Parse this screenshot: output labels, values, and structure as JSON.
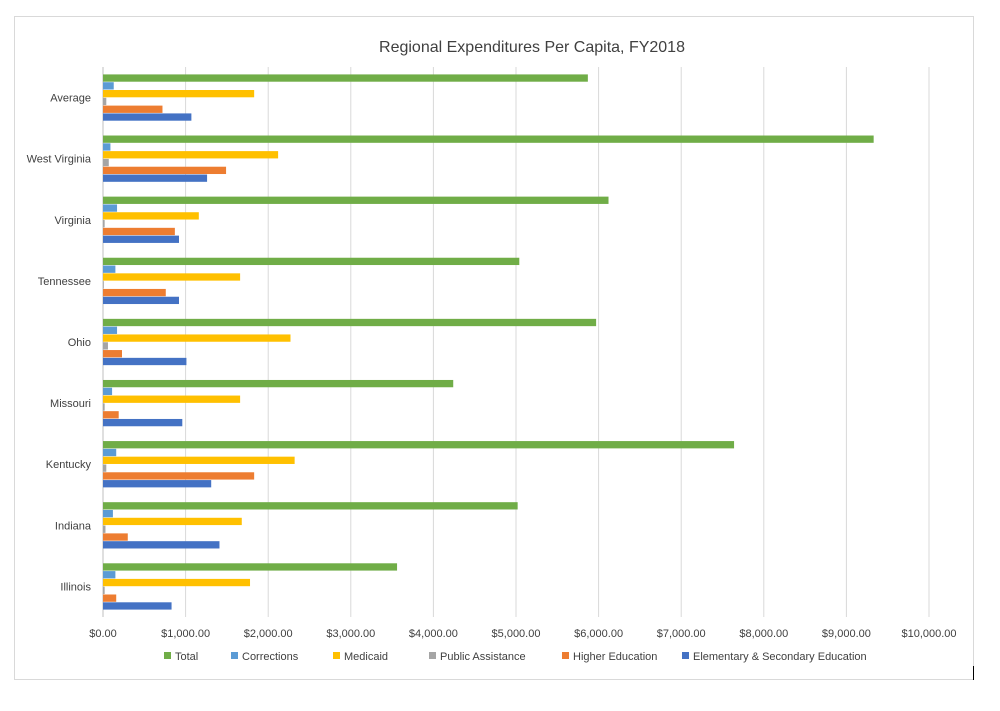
{
  "chart_data": {
    "type": "bar",
    "orientation": "horizontal",
    "title": "Regional Expenditures Per Capita, FY2018",
    "xlabel": "",
    "ylabel": "",
    "xlim": [
      0,
      10000
    ],
    "x_ticks": [
      0,
      1000,
      2000,
      3000,
      4000,
      5000,
      6000,
      7000,
      8000,
      9000,
      10000
    ],
    "x_tick_labels": [
      "$0.00",
      "$1,000.00",
      "$2,000.00",
      "$3,000.00",
      "$4,000.00",
      "$5,000.00",
      "$6,000.00",
      "$7,000.00",
      "$8,000.00",
      "$9,000.00",
      "$10,000.00"
    ],
    "grid": "vertical",
    "legend_position": "bottom",
    "categories": [
      "Average",
      "West Virginia",
      "Virginia",
      "Tennessee",
      "Ohio",
      "Missouri",
      "Kentucky",
      "Indiana",
      "Illinois"
    ],
    "series": [
      {
        "name": "Total",
        "color": "#70ad47",
        "values": [
          5870,
          9330,
          6120,
          5040,
          5970,
          4240,
          7640,
          5020,
          3560
        ]
      },
      {
        "name": "Corrections",
        "color": "#5b9bd5",
        "values": [
          130,
          90,
          170,
          150,
          170,
          110,
          160,
          120,
          150
        ]
      },
      {
        "name": "Medicaid",
        "color": "#ffc000",
        "values": [
          1830,
          2120,
          1160,
          1660,
          2270,
          1660,
          2320,
          1680,
          1780
        ]
      },
      {
        "name": "Public Assistance",
        "color": "#a5a5a5",
        "values": [
          40,
          70,
          20,
          10,
          60,
          20,
          40,
          30,
          20
        ]
      },
      {
        "name": "Higher Education",
        "color": "#ed7d31",
        "values": [
          720,
          1490,
          870,
          760,
          230,
          190,
          1830,
          300,
          160
        ]
      },
      {
        "name": "Elementary & Secondary Education",
        "color": "#4472c4",
        "values": [
          1070,
          1260,
          920,
          920,
          1010,
          960,
          1310,
          1410,
          830
        ]
      }
    ]
  }
}
